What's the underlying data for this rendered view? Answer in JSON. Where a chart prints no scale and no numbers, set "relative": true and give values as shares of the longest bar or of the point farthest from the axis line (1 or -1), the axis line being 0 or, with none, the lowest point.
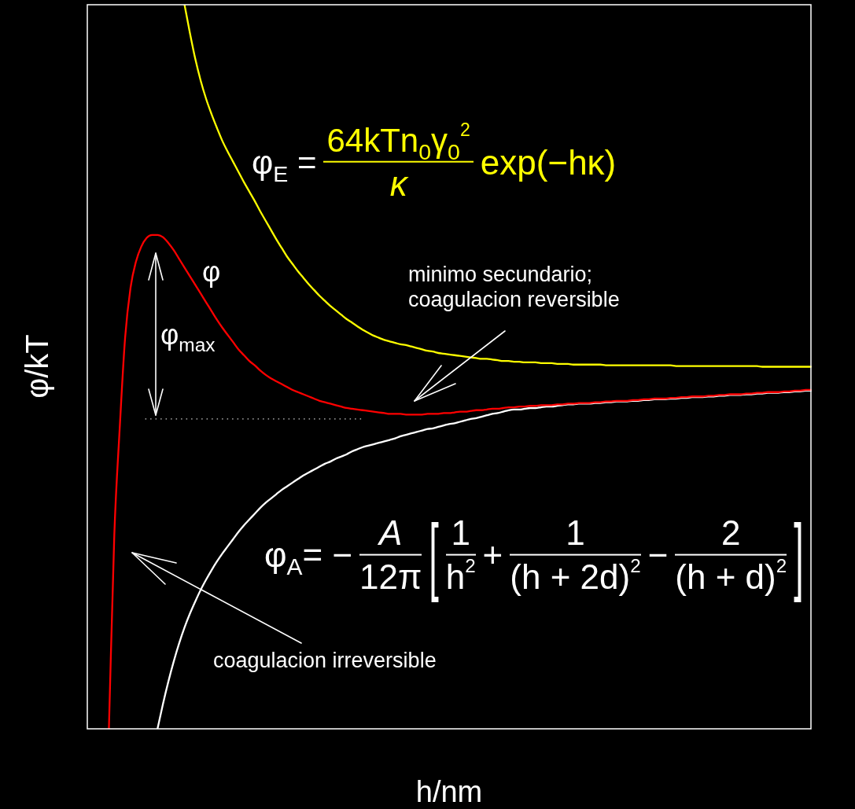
{
  "chart_data": {
    "type": "line",
    "relative": true,
    "tick_labels": false,
    "marker": "none",
    "line_style": "solid",
    "xlabel": "h/nm",
    "ylabel": "φ/kT",
    "categories": [
      null,
      null,
      null,
      null,
      null,
      null,
      null,
      null,
      null,
      null,
      null,
      null,
      null,
      null,
      null,
      null,
      null,
      null,
      null,
      null,
      null,
      null,
      null,
      null,
      null,
      null,
      null,
      null,
      null,
      null,
      null,
      null,
      null,
      null,
      null,
      null,
      null,
      null,
      null,
      null,
      null,
      null,
      null,
      null,
      null,
      null,
      null,
      null,
      null,
      null,
      null,
      null,
      null,
      null,
      null,
      null,
      null,
      null,
      null,
      null,
      null,
      null,
      null,
      null,
      null,
      null,
      null,
      null,
      null,
      null,
      null,
      null,
      null,
      null,
      null,
      null,
      null,
      null,
      null,
      null,
      null,
      null,
      null,
      null,
      null,
      null,
      null,
      null,
      null,
      null,
      null,
      null,
      null,
      null,
      null,
      null,
      null,
      null,
      null,
      null,
      null,
      null,
      null,
      null,
      null,
      null,
      null,
      null,
      null,
      null,
      null,
      null,
      null,
      null,
      null,
      null,
      null,
      null,
      null,
      null,
      null,
      null,
      null,
      null,
      null,
      null,
      null,
      null,
      null,
      null,
      null,
      null,
      null,
      null,
      null
    ],
    "series": [
      {
        "name": "φ",
        "color": "#ff0000",
        "values": [
          null,
          null,
          null,
          null,
          0,
          0.268,
          0.415,
          0.54,
          0.609,
          0.645,
          0.666,
          0.678,
          0.682,
          0.682,
          0.679,
          0.671,
          0.661,
          0.649,
          0.637,
          0.625,
          0.613,
          0.601,
          0.589,
          0.577,
          0.565,
          0.554,
          0.544,
          0.534,
          0.524,
          0.516,
          0.508,
          0.502,
          0.495,
          0.489,
          0.484,
          0.48,
          0.476,
          0.472,
          0.468,
          0.465,
          0.462,
          0.459,
          0.456,
          0.453,
          0.451,
          0.449,
          0.447,
          0.445,
          0.443,
          0.442,
          0.441,
          0.44,
          0.439,
          0.438,
          0.437,
          0.436,
          0.435,
          0.435,
          0.435,
          0.434,
          0.434,
          0.434,
          0.434,
          0.435,
          0.435,
          0.435,
          0.436,
          0.436,
          0.437,
          0.438,
          0.438,
          0.439,
          0.44,
          0.44,
          0.441,
          0.442,
          0.442,
          0.443,
          0.444,
          0.444,
          0.445,
          0.445,
          0.446,
          0.446,
          0.447,
          0.447,
          0.447,
          0.448,
          0.448,
          0.449,
          0.449,
          0.45,
          0.45,
          0.45,
          0.451,
          0.451,
          0.452,
          0.452,
          0.453,
          0.453,
          0.453,
          0.454,
          0.454,
          0.455,
          0.455,
          0.456,
          0.456,
          0.456,
          0.457,
          0.457,
          0.458,
          0.458,
          0.459,
          0.459,
          0.459,
          0.46,
          0.46,
          0.461,
          0.461,
          0.462,
          0.462,
          0.462,
          0.463,
          0.463,
          0.464,
          0.464,
          0.465,
          0.465,
          0.465,
          0.466,
          0.466,
          0.467,
          0.467,
          0.468,
          0.468
        ]
      },
      {
        "color": "#ffff00",
        "values": [
          null,
          null,
          null,
          null,
          null,
          null,
          null,
          null,
          null,
          null,
          null,
          null,
          null,
          null,
          null,
          null,
          null,
          null,
          1,
          0.961,
          0.925,
          0.895,
          0.87,
          0.849,
          0.83,
          0.812,
          0.797,
          0.783,
          0.769,
          0.755,
          0.742,
          0.729,
          0.715,
          0.702,
          0.689,
          0.676,
          0.664,
          0.652,
          0.642,
          0.632,
          0.623,
          0.614,
          0.606,
          0.598,
          0.591,
          0.584,
          0.578,
          0.572,
          0.566,
          0.561,
          0.556,
          0.551,
          0.547,
          0.543,
          0.54,
          0.537,
          0.535,
          0.533,
          0.531,
          0.53,
          0.528,
          0.526,
          0.524,
          0.522,
          0.521,
          0.519,
          0.518,
          0.517,
          0.516,
          0.515,
          0.514,
          0.513,
          0.512,
          0.511,
          0.511,
          0.51,
          0.509,
          0.508,
          0.508,
          0.507,
          0.507,
          0.506,
          0.506,
          0.506,
          0.505,
          0.505,
          0.505,
          0.504,
          0.504,
          0.504,
          0.503,
          0.503,
          0.503,
          0.503,
          0.503,
          0.503,
          0.502,
          0.502,
          0.502,
          0.502,
          0.502,
          0.502,
          0.502,
          0.502,
          0.502,
          0.502,
          0.502,
          0.502,
          0.502,
          0.501,
          0.501,
          0.501,
          0.501,
          0.501,
          0.501,
          0.501,
          0.501,
          0.501,
          0.501,
          0.501,
          0.501,
          0.501,
          0.501,
          0.501,
          0.501,
          0.5,
          0.5,
          0.5,
          0.5,
          0.5,
          0.5,
          0.5,
          0.5,
          0.5,
          0.5
        ]
      },
      {
        "color": "#ffffff",
        "values": [
          null,
          null,
          null,
          null,
          null,
          null,
          null,
          null,
          null,
          null,
          null,
          null,
          null,
          0,
          0.034,
          0.065,
          0.093,
          0.118,
          0.14,
          0.159,
          0.176,
          0.192,
          0.206,
          0.219,
          0.231,
          0.242,
          0.252,
          0.262,
          0.272,
          0.281,
          0.289,
          0.297,
          0.305,
          0.312,
          0.318,
          0.324,
          0.33,
          0.335,
          0.34,
          0.345,
          0.35,
          0.354,
          0.358,
          0.362,
          0.366,
          0.369,
          0.373,
          0.376,
          0.379,
          0.383,
          0.386,
          0.389,
          0.391,
          0.393,
          0.395,
          0.397,
          0.399,
          0.401,
          0.404,
          0.406,
          0.408,
          0.41,
          0.412,
          0.414,
          0.415,
          0.417,
          0.419,
          0.421,
          0.422,
          0.424,
          0.426,
          0.428,
          0.429,
          0.431,
          0.433,
          0.435,
          0.436,
          0.438,
          0.44,
          0.441,
          0.441,
          0.442,
          0.443,
          0.443,
          0.444,
          0.445,
          0.445,
          0.446,
          0.447,
          0.448,
          0.448,
          0.449,
          0.449,
          0.449,
          0.45,
          0.45,
          0.451,
          0.451,
          0.452,
          0.452,
          0.452,
          0.453,
          0.453,
          0.454,
          0.454,
          0.455,
          0.455,
          0.455,
          0.456,
          0.456,
          0.457,
          0.457,
          0.458,
          0.458,
          0.458,
          0.459,
          0.459,
          0.46,
          0.46,
          0.461,
          0.461,
          0.461,
          0.462,
          0.462,
          0.463,
          0.463,
          0.464,
          0.464,
          0.464,
          0.465,
          0.465,
          0.466,
          0.466,
          0.467,
          0.467
        ]
      }
    ],
    "ref_lines": [
      {
        "axis": "y",
        "value": 0.428,
        "line_style": "dotted",
        "color": "#cccccc"
      }
    ],
    "annotations": [
      "φ$_{E}$ =",
      "64kTn$_{0}$γ$_{0}$$^{2}$",
      "κ",
      "exp(−hκ)",
      "φ$_{max}$",
      "minimo secundario;\ncoagulacion reversible",
      "coagulacion irreversible",
      "φ$_{A}$= −",
      "A",
      "12π",
      "[",
      "1",
      "h$^{2}$",
      "+",
      "1",
      "(h + 2d)$^{2}$",
      "−",
      "2",
      "(h + d)$^{2}$",
      "]"
    ]
  }
}
